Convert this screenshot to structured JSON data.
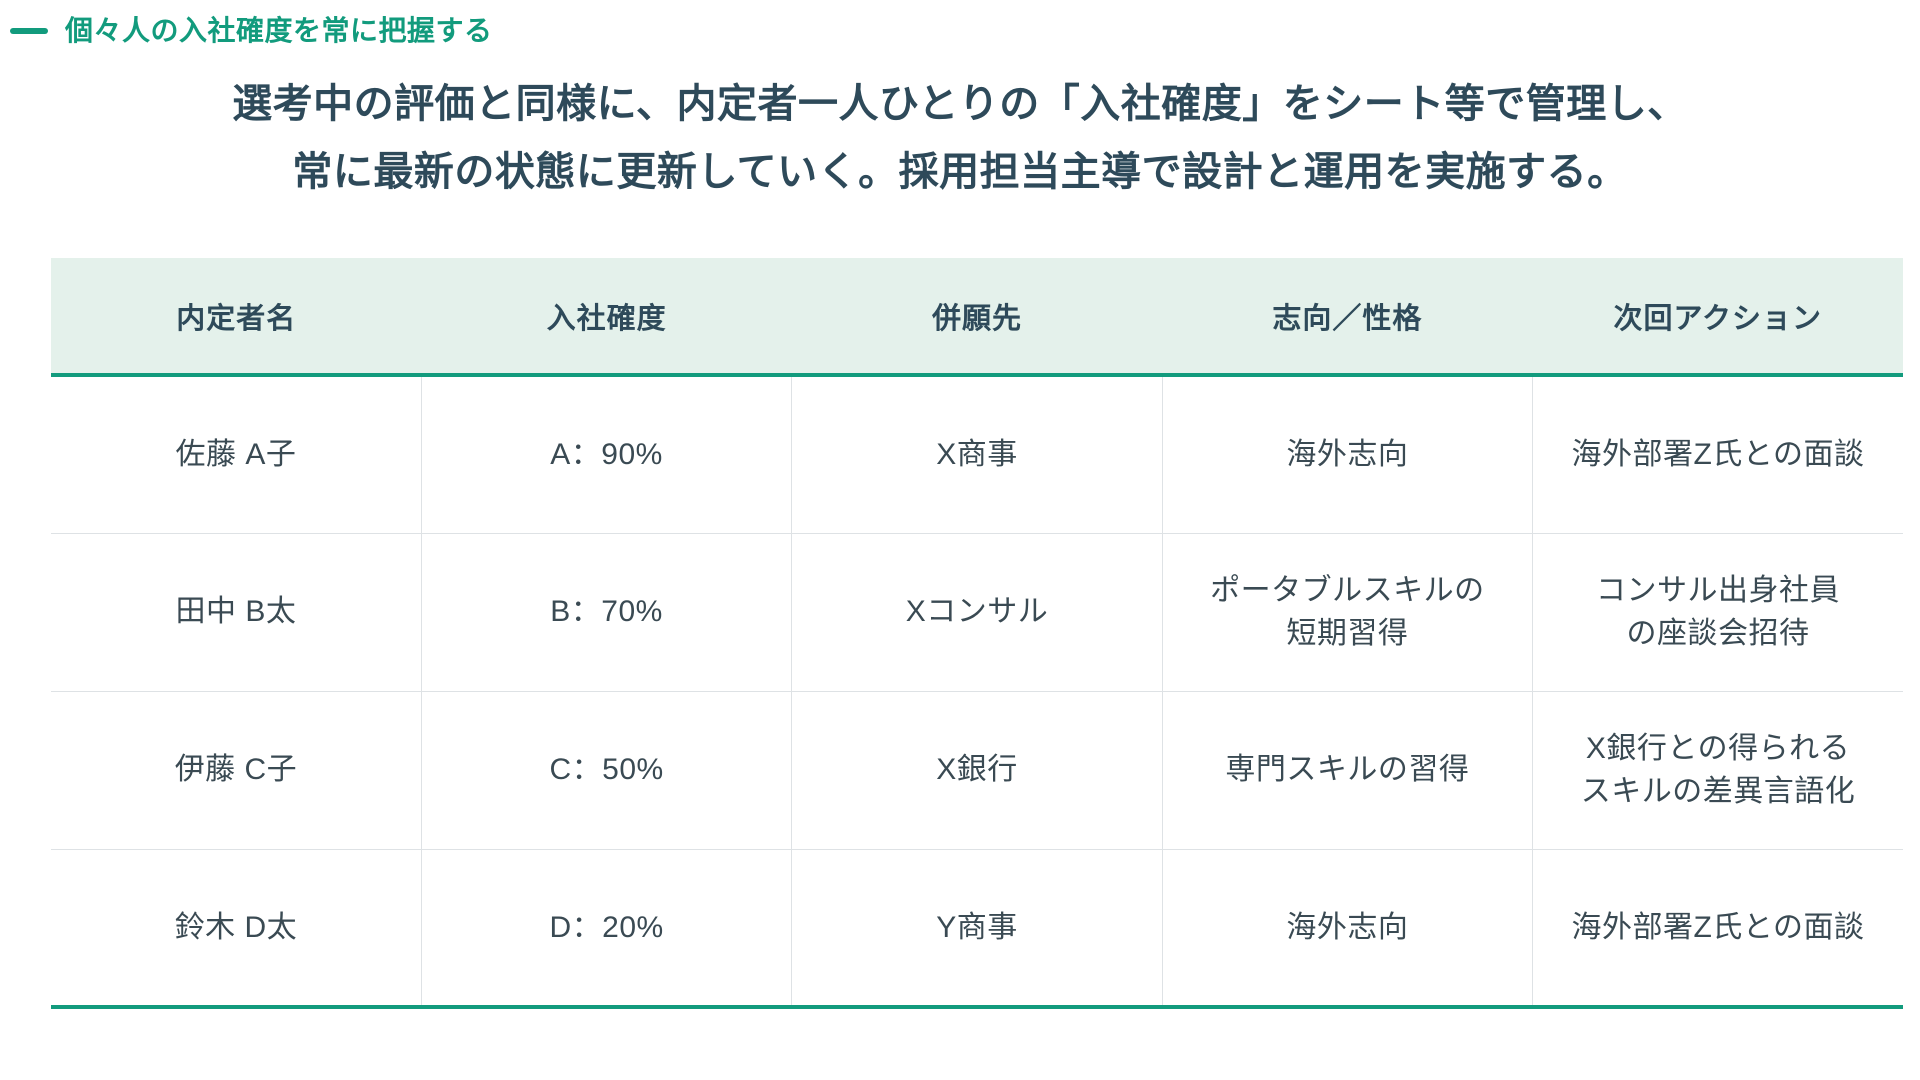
{
  "colors": {
    "accent": "#129B7D",
    "header_bg": "#E4F1EB",
    "heading_text": "#2E4A5A",
    "body_text": "#3A4A53",
    "grid_line": "#DEE2E5"
  },
  "section": {
    "label": "個々人の入社確度を常に把握する"
  },
  "heading": {
    "line1": "選考中の評価と同様に、内定者一人ひとりの「入社確度」をシート等で管理し、",
    "line2": "常に最新の状態に更新していく。採用担当主導で設計と運用を実施する。"
  },
  "table": {
    "columns": [
      "内定者名",
      "入社確度",
      "併願先",
      "志向／性格",
      "次回アクション"
    ],
    "rows": [
      [
        "佐藤 A子",
        "A：90%",
        "X商事",
        "海外志向",
        "海外部署Z氏との面談"
      ],
      [
        "田中 B太",
        "B：70%",
        "Xコンサル",
        "ポータブルスキルの\n短期習得",
        "コンサル出身社員\nの座談会招待"
      ],
      [
        "伊藤 C子",
        "C：50%",
        "X銀行",
        "専門スキルの習得",
        "X銀行との得られる\nスキルの差異言語化"
      ],
      [
        "鈴木 D太",
        "D：20%",
        "Y商事",
        "海外志向",
        "海外部署Z氏との面談"
      ]
    ]
  }
}
